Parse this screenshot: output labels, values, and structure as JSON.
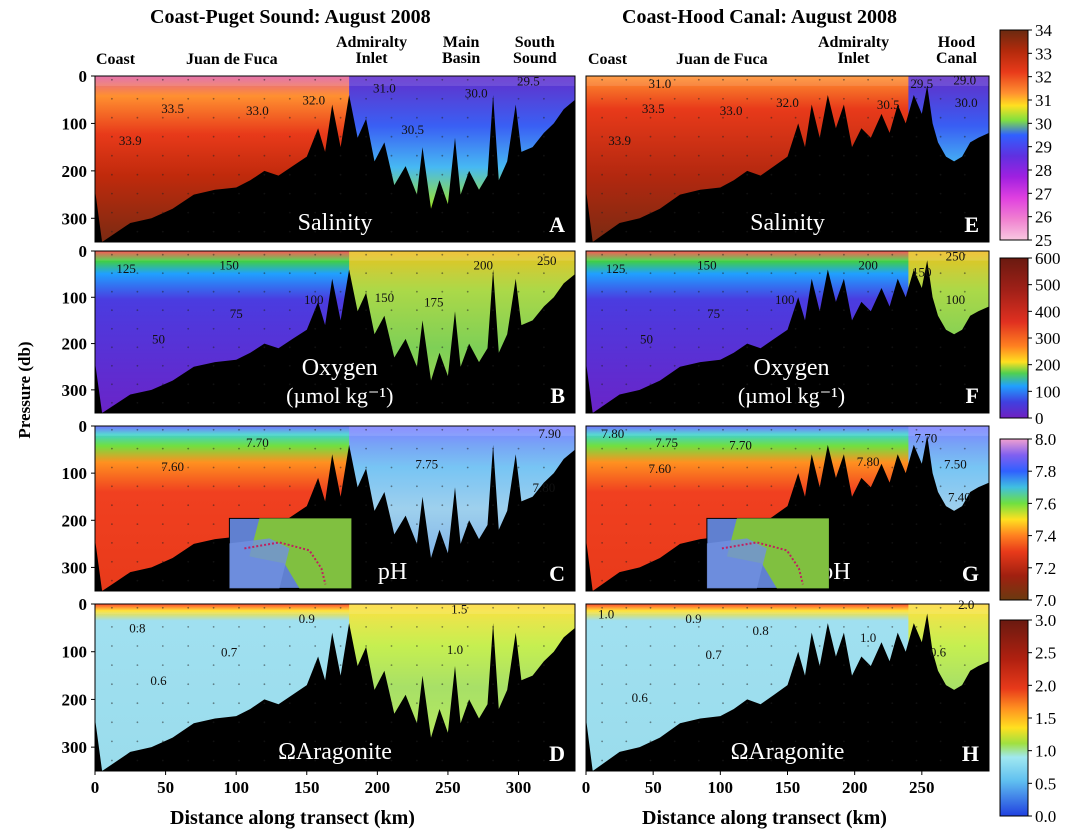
{
  "figure": {
    "left_title": "Coast-Puget Sound: August 2008",
    "right_title": "Coast-Hood Canal: August 2008",
    "y_axis_label": "Pressure (db)",
    "x_axis_label": "Distance along transect (km)",
    "left_regions": [
      {
        "label": "Coast"
      },
      {
        "label": "Juan de Fuca"
      },
      {
        "label": "Admiralty\nInlet"
      },
      {
        "label": "Main\nBasin"
      },
      {
        "label": "South\nSound"
      }
    ],
    "right_regions": [
      {
        "label": "Coast"
      },
      {
        "label": "Juan de Fuca"
      },
      {
        "label": "Admiralty\nInlet"
      },
      {
        "label": "Hood\nCanal"
      }
    ]
  },
  "chart_data": [
    {
      "type": "heatmap",
      "panel": "A",
      "variable": "Salinity",
      "transect": "Coast-Puget Sound",
      "xlim": [
        0,
        340
      ],
      "ylim": [
        350,
        0
      ],
      "y_ticks": [
        0,
        100,
        200,
        300
      ],
      "contours": [
        {
          "value": "33.9",
          "x": 25,
          "y": 145
        },
        {
          "value": "33.5",
          "x": 55,
          "y": 78
        },
        {
          "value": "33.0",
          "x": 115,
          "y": 82
        },
        {
          "value": "32.0",
          "x": 155,
          "y": 60
        },
        {
          "value": "31.0",
          "x": 205,
          "y": 35
        },
        {
          "value": "30.5",
          "x": 225,
          "y": 122
        },
        {
          "value": "30.0",
          "x": 270,
          "y": 45
        },
        {
          "value": "29.5",
          "x": 307,
          "y": 20
        }
      ],
      "colorbar": {
        "min": 25,
        "max": 34,
        "ticks": [
          "34",
          "33",
          "32",
          "31",
          "30",
          "29",
          "28",
          "27",
          "26",
          "25"
        ]
      }
    },
    {
      "type": "heatmap",
      "panel": "B",
      "variable": "Oxygen",
      "units": "(µmol kg⁻¹)",
      "transect": "Coast-Puget Sound",
      "xlim": [
        0,
        340
      ],
      "ylim": [
        350,
        0
      ],
      "y_ticks": [
        0,
        100,
        200,
        300
      ],
      "contours": [
        {
          "value": "125",
          "x": 22,
          "y": 48
        },
        {
          "value": "150",
          "x": 95,
          "y": 40
        },
        {
          "value": "100",
          "x": 155,
          "y": 115
        },
        {
          "value": "75",
          "x": 100,
          "y": 145
        },
        {
          "value": "50",
          "x": 45,
          "y": 200
        },
        {
          "value": "150",
          "x": 205,
          "y": 110
        },
        {
          "value": "175",
          "x": 240,
          "y": 120
        },
        {
          "value": "200",
          "x": 275,
          "y": 40
        },
        {
          "value": "250",
          "x": 320,
          "y": 30
        }
      ],
      "colorbar": {
        "min": 0,
        "max": 600,
        "ticks": [
          "600",
          "500",
          "400",
          "300",
          "200",
          "100",
          "0"
        ]
      }
    },
    {
      "type": "heatmap",
      "panel": "C",
      "variable": "pH",
      "transect": "Coast-Puget Sound",
      "xlim": [
        0,
        340
      ],
      "ylim": [
        350,
        0
      ],
      "y_ticks": [
        0,
        100,
        200,
        300
      ],
      "contours": [
        {
          "value": "7.70",
          "x": 115,
          "y": 45
        },
        {
          "value": "7.60",
          "x": 55,
          "y": 95
        },
        {
          "value": "7.75",
          "x": 235,
          "y": 90
        },
        {
          "value": "7.90",
          "x": 322,
          "y": 25
        },
        {
          "value": "7.80",
          "x": 318,
          "y": 140
        }
      ],
      "colorbar": {
        "min": 7.0,
        "max": 8.0,
        "ticks": [
          "8.0",
          "7.8",
          "7.6",
          "7.4",
          "7.2",
          "7.0"
        ]
      }
    },
    {
      "type": "heatmap",
      "panel": "D",
      "variable": "ΩAragonite",
      "transect": "Coast-Puget Sound",
      "xlim": [
        0,
        340
      ],
      "ylim": [
        350,
        0
      ],
      "y_ticks": [
        0,
        100,
        200,
        300
      ],
      "contours": [
        {
          "value": "0.8",
          "x": 30,
          "y": 60
        },
        {
          "value": "0.9",
          "x": 150,
          "y": 40
        },
        {
          "value": "0.7",
          "x": 95,
          "y": 110
        },
        {
          "value": "0.6",
          "x": 45,
          "y": 170
        },
        {
          "value": "1.0",
          "x": 255,
          "y": 105
        },
        {
          "value": "1.5",
          "x": 258,
          "y": 20
        }
      ],
      "colorbar": {
        "min": 0.0,
        "max": 3.0,
        "ticks": [
          "3.0",
          "2.5",
          "2.0",
          "1.5",
          "1.0",
          "0.5",
          "0.0"
        ]
      }
    },
    {
      "type": "heatmap",
      "panel": "E",
      "variable": "Salinity",
      "transect": "Coast-Hood Canal",
      "xlim": [
        0,
        300
      ],
      "ylim": [
        350,
        0
      ],
      "contours": [
        {
          "value": "33.9",
          "x": 25,
          "y": 145
        },
        {
          "value": "33.5",
          "x": 50,
          "y": 78
        },
        {
          "value": "33.0",
          "x": 108,
          "y": 82
        },
        {
          "value": "32.0",
          "x": 150,
          "y": 65
        },
        {
          "value": "31.0",
          "x": 55,
          "y": 25
        },
        {
          "value": "30.5",
          "x": 225,
          "y": 70
        },
        {
          "value": "29.5",
          "x": 250,
          "y": 25
        },
        {
          "value": "29.0",
          "x": 282,
          "y": 18
        },
        {
          "value": "30.0",
          "x": 283,
          "y": 65
        }
      ]
    },
    {
      "type": "heatmap",
      "panel": "F",
      "variable": "Oxygen",
      "units": "(µmol kg⁻¹)",
      "transect": "Coast-Hood Canal",
      "xlim": [
        0,
        300
      ],
      "ylim": [
        350,
        0
      ],
      "contours": [
        {
          "value": "125",
          "x": 22,
          "y": 48
        },
        {
          "value": "150",
          "x": 90,
          "y": 40
        },
        {
          "value": "100",
          "x": 148,
          "y": 115
        },
        {
          "value": "75",
          "x": 95,
          "y": 145
        },
        {
          "value": "50",
          "x": 45,
          "y": 200
        },
        {
          "value": "200",
          "x": 210,
          "y": 40
        },
        {
          "value": "150",
          "x": 250,
          "y": 55
        },
        {
          "value": "250",
          "x": 275,
          "y": 20
        },
        {
          "value": "100",
          "x": 275,
          "y": 115
        }
      ]
    },
    {
      "type": "heatmap",
      "panel": "G",
      "variable": "pH",
      "transect": "Coast-Hood Canal",
      "xlim": [
        0,
        300
      ],
      "ylim": [
        350,
        0
      ],
      "contours": [
        {
          "value": "7.80",
          "x": 20,
          "y": 25
        },
        {
          "value": "7.75",
          "x": 60,
          "y": 45
        },
        {
          "value": "7.70",
          "x": 115,
          "y": 50
        },
        {
          "value": "7.60",
          "x": 55,
          "y": 100
        },
        {
          "value": "7.80",
          "x": 210,
          "y": 85
        },
        {
          "value": "7.70",
          "x": 253,
          "y": 35
        },
        {
          "value": "7.50",
          "x": 275,
          "y": 90
        },
        {
          "value": "7.40",
          "x": 278,
          "y": 160
        }
      ]
    },
    {
      "type": "heatmap",
      "panel": "H",
      "variable": "ΩAragonite",
      "transect": "Coast-Hood Canal",
      "xlim": [
        0,
        300
      ],
      "ylim": [
        350,
        0
      ],
      "contours": [
        {
          "value": "1.0",
          "x": 15,
          "y": 30
        },
        {
          "value": "0.9",
          "x": 80,
          "y": 40
        },
        {
          "value": "0.8",
          "x": 130,
          "y": 65
        },
        {
          "value": "1.0",
          "x": 210,
          "y": 80
        },
        {
          "value": "0.7",
          "x": 95,
          "y": 115
        },
        {
          "value": "0.6",
          "x": 40,
          "y": 205
        },
        {
          "value": "0.6",
          "x": 262,
          "y": 110
        },
        {
          "value": "2.0",
          "x": 283,
          "y": 10
        }
      ]
    }
  ],
  "x_ticks": {
    "left": [
      "0",
      "50",
      "100",
      "150",
      "200",
      "250",
      "300"
    ],
    "right": [
      "0",
      "50",
      "100",
      "150",
      "200",
      "250"
    ]
  },
  "y_ticks": [
    "0",
    "100",
    "200",
    "300"
  ]
}
